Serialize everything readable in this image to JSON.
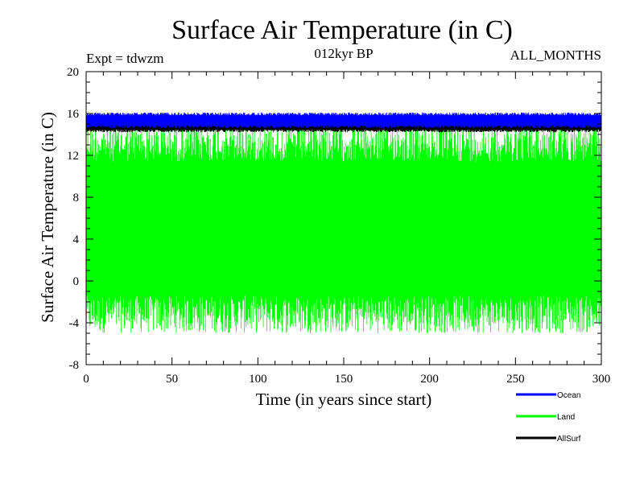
{
  "chart_data": {
    "type": "line",
    "title": "Surface Air Temperature (in C)",
    "subtitle_left": "Expt = tdwzm",
    "subtitle_center": "012kyr BP",
    "subtitle_right": "ALL_MONTHS",
    "xlabel": "Time (in years since start)",
    "ylabel": "Surface Air Temperature (in C)",
    "xlim": [
      0,
      300
    ],
    "ylim": [
      -8,
      20
    ],
    "x_ticks": [
      0,
      50,
      100,
      150,
      200,
      250,
      300
    ],
    "y_ticks": [
      -8,
      -4,
      0,
      4,
      8,
      12,
      16,
      20
    ],
    "legend_position": "below-right",
    "series": [
      {
        "name": "Ocean",
        "color": "#0000ff",
        "min": 14.6,
        "max": 16.1
      },
      {
        "name": "Land",
        "color": "#00ff00",
        "min": -5.0,
        "max": 15.0
      },
      {
        "name": "AllSurf",
        "color": "#000000",
        "min": 14.2,
        "max": 15.6
      }
    ]
  }
}
